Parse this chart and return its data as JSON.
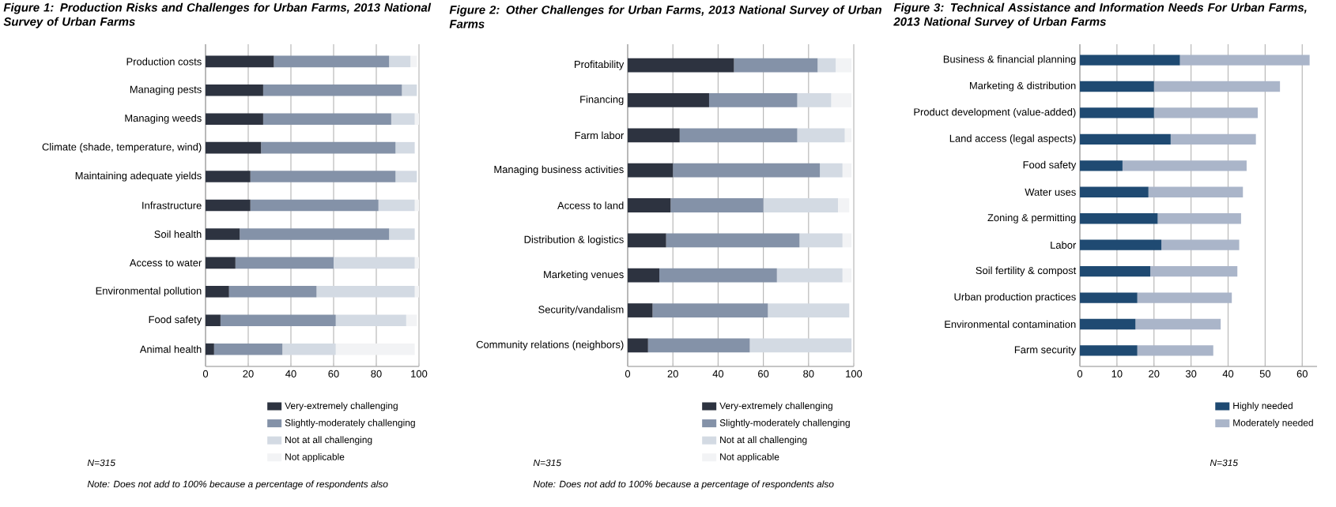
{
  "chart_data": [
    {
      "type": "bar",
      "orientation": "horizontal",
      "stacked": true,
      "grid": "x",
      "legend": "bottom",
      "title": "Figure 1: Production Risks and Challenges for Urban Farms, 2013 National Survey of Urban Farms",
      "categories": [
        "Production costs",
        "Managing pests",
        "Managing weeds",
        "Climate (shade, temperature, wind)",
        "Maintaining adequate yields",
        "Infrastructure",
        "Soil health",
        "Access to water",
        "Environmental pollution",
        "Food safety",
        "Animal health"
      ],
      "series": [
        {
          "name": "Very-extremely challenging",
          "color": "#2d3340",
          "values": [
            32,
            27,
            27,
            26,
            21,
            21,
            16,
            14,
            11,
            7,
            4
          ]
        },
        {
          "name": "Slightly-moderately challenging",
          "color": "#8492a8",
          "values": [
            54,
            65,
            60,
            63,
            68,
            60,
            70,
            46,
            41,
            54,
            32
          ]
        },
        {
          "name": "Not at all challenging",
          "color": "#d3dae3",
          "values": [
            10,
            7,
            11,
            9,
            10,
            17,
            12,
            38,
            46,
            33,
            25
          ]
        },
        {
          "name": "Not applicable",
          "color": "#f2f3f5",
          "values": [
            3,
            null,
            2,
            null,
            null,
            2,
            null,
            2,
            2,
            5,
            37
          ]
        }
      ],
      "xlim": [
        0,
        100
      ],
      "xticks": [
        0,
        20,
        40,
        60,
        80,
        100
      ],
      "annotations": [
        "N=315",
        "Note: Does not add to 100% because a percentage of respondents also"
      ]
    },
    {
      "type": "bar",
      "orientation": "horizontal",
      "stacked": true,
      "grid": "x",
      "legend": "bottom",
      "title": "Figure 2: Other Challenges for Urban Farms, 2013 National Survey of Urban Farms",
      "categories": [
        "Profitability",
        "Financing",
        "Farm labor",
        "Managing business activities",
        "Access to land",
        "Distribution & logistics",
        "Marketing venues",
        "Security/vandalism",
        "Community relations (neighbors)"
      ],
      "series": [
        {
          "name": "Very-extremely challenging",
          "color": "#2d3340",
          "values": [
            47,
            36,
            23,
            20,
            19,
            17,
            14,
            11,
            9
          ]
        },
        {
          "name": "Slightly-moderately challenging",
          "color": "#8492a8",
          "values": [
            37,
            39,
            52,
            65,
            41,
            59,
            52,
            51,
            45
          ]
        },
        {
          "name": "Not at all challenging",
          "color": "#d3dae3",
          "values": [
            8,
            15,
            21,
            10,
            33,
            19,
            29,
            36,
            45
          ]
        },
        {
          "name": "Not applicable",
          "color": "#f2f3f5",
          "values": [
            7,
            9,
            3,
            4,
            5,
            4,
            4,
            null,
            null
          ]
        }
      ],
      "xlim": [
        0,
        100
      ],
      "xticks": [
        0,
        20,
        40,
        60,
        80,
        100
      ],
      "annotations": [
        "N=315",
        "Note: Does not add to 100% because a percentage of respondents also"
      ]
    },
    {
      "type": "bar",
      "orientation": "horizontal",
      "stacked": true,
      "grid": "x",
      "legend": "bottom",
      "title": "Figure 3: Technical Assistance and Information Needs For Urban Farms, 2013 National Survey of Urban Farms",
      "categories": [
        "Business & financial planning",
        "Marketing & distribution",
        "Product development (value-added)",
        "Land access (legal aspects)",
        "Food safety",
        "Water uses",
        "Zoning & permitting",
        "Labor",
        "Soil fertility & compost",
        "Urban production practices",
        "Environmental contamination",
        "Farm security"
      ],
      "series": [
        {
          "name": "Highly needed",
          "color": "#1f4a72",
          "values": [
            27,
            20,
            20,
            24.5,
            11.5,
            18.5,
            21,
            22,
            19,
            15.5,
            15,
            15.5
          ]
        },
        {
          "name": "Moderately needed",
          "color": "#aab5c9",
          "values": [
            35,
            34,
            28,
            23,
            33.5,
            25.5,
            22.5,
            21,
            23.5,
            25.5,
            23,
            20.5
          ]
        }
      ],
      "xlim": [
        0,
        64
      ],
      "xticks": [
        0,
        10,
        20,
        30,
        40,
        50,
        60
      ],
      "annotations": [
        "N=315"
      ]
    }
  ]
}
